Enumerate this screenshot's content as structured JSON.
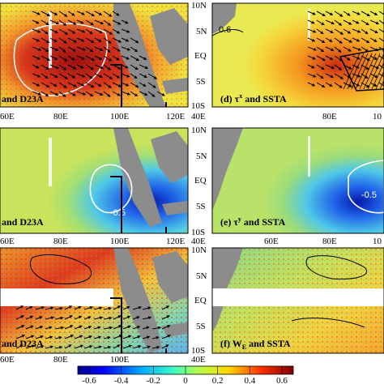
{
  "panels": [
    {
      "id": "c",
      "label_visible": "and D23A"
    },
    {
      "id": "d",
      "label_visible": "(d) τx and SSTA"
    },
    {
      "id": "b",
      "label_visible": "and D23A"
    },
    {
      "id": "e",
      "label_visible": "(e) τy and SSTA"
    },
    {
      "id": "a",
      "label_visible": "and D23A"
    },
    {
      "id": "f",
      "label_visible": "(f) WE and SSTA"
    }
  ],
  "contour_labels": {
    "panel_d_top": "0.6",
    "panel_b": "-0.5",
    "panel_e": "-0.5"
  },
  "left_lon_ticks": [
    "60E",
    "80E",
    "100E",
    "120E"
  ],
  "right_lon_ticks": [
    "40E",
    "60E",
    "80E",
    "10"
  ],
  "lat_ticks": [
    "10N",
    "5N",
    "EQ",
    "5S",
    "10S"
  ],
  "colorbar": {
    "ticks": [
      "-0.6",
      "-0.4",
      "-0.2",
      "0",
      "0.2",
      "0.4",
      "0.6"
    ],
    "colors": [
      "#00008f",
      "#0000ff",
      "#006fff",
      "#00cfff",
      "#4fffaf",
      "#afff4f",
      "#ffdf00",
      "#ff7f00",
      "#ff1f00",
      "#8f0000"
    ]
  },
  "palette": {
    "land": "#8c8c8c",
    "deep_red": "#b01010",
    "red": "#e43a1a",
    "orange": "#f59a28",
    "yellow": "#f7df3a",
    "light_green": "#a8e070",
    "cyan": "#4fd0e8",
    "light_blue": "#4aa4f0",
    "blue": "#1c5fe0",
    "dark_blue": "#0a1fb0"
  }
}
